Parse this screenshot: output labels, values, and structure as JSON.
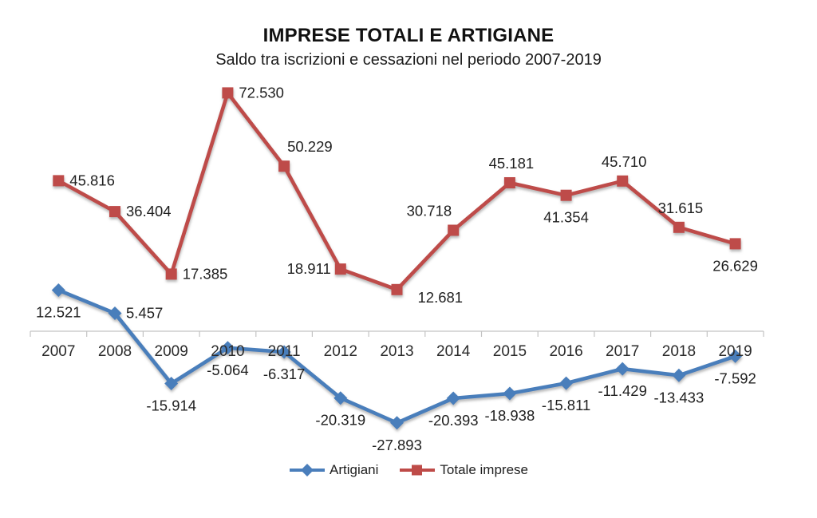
{
  "chart_data": {
    "type": "line",
    "title": "IMPRESE TOTALI E ARTIGIANE",
    "subtitle": "Saldo tra iscrizioni e cessazioni nel periodo 2007-2019",
    "xlabel": "",
    "ylabel": "",
    "categories": [
      "2007",
      "2008",
      "2009",
      "2010",
      "2011",
      "2012",
      "2013",
      "2014",
      "2015",
      "2016",
      "2017",
      "2018",
      "2019"
    ],
    "series": [
      {
        "name": "Artigiani",
        "color": "#4A7EBB",
        "marker": "diamond",
        "values": [
          12521,
          5457,
          -15914,
          -5064,
          -6317,
          -20319,
          -27893,
          -20393,
          -18938,
          -15811,
          -11429,
          -13433,
          -7592
        ],
        "labels": [
          "12.521",
          "5.457",
          "-15.914",
          "-5.064",
          "-6.317",
          "-20.319",
          "-27.893",
          "-20.393",
          "-18.938",
          "-15.811",
          "-11.429",
          "-13.433",
          "-7.592"
        ],
        "label_anchors": [
          "below",
          "right",
          "below",
          "below",
          "below",
          "below",
          "below",
          "below",
          "below",
          "below",
          "below",
          "below",
          "below"
        ]
      },
      {
        "name": "Totale imprese",
        "color": "#BE4B48",
        "marker": "square",
        "values": [
          45816,
          36404,
          17385,
          72530,
          50229,
          18911,
          12681,
          30718,
          45181,
          41354,
          45710,
          31615,
          26629
        ],
        "labels": [
          "45.816",
          "36.404",
          "17.385",
          "72.530",
          "50.229",
          "18.911",
          "12.681",
          "30.718",
          "45.181",
          "41.354",
          "45.710",
          "31.615",
          "26.629"
        ],
        "label_anchors": [
          "right",
          "right",
          "right",
          "right",
          "above-right",
          "left",
          "below-right",
          "above-left",
          "above",
          "below",
          "above",
          "above",
          "below"
        ]
      }
    ],
    "ylim": [
      -40000,
      80000
    ],
    "grid": false,
    "legend_position": "bottom",
    "axis_color": "#C3C3C3",
    "label_color": "#1f1f1f"
  }
}
